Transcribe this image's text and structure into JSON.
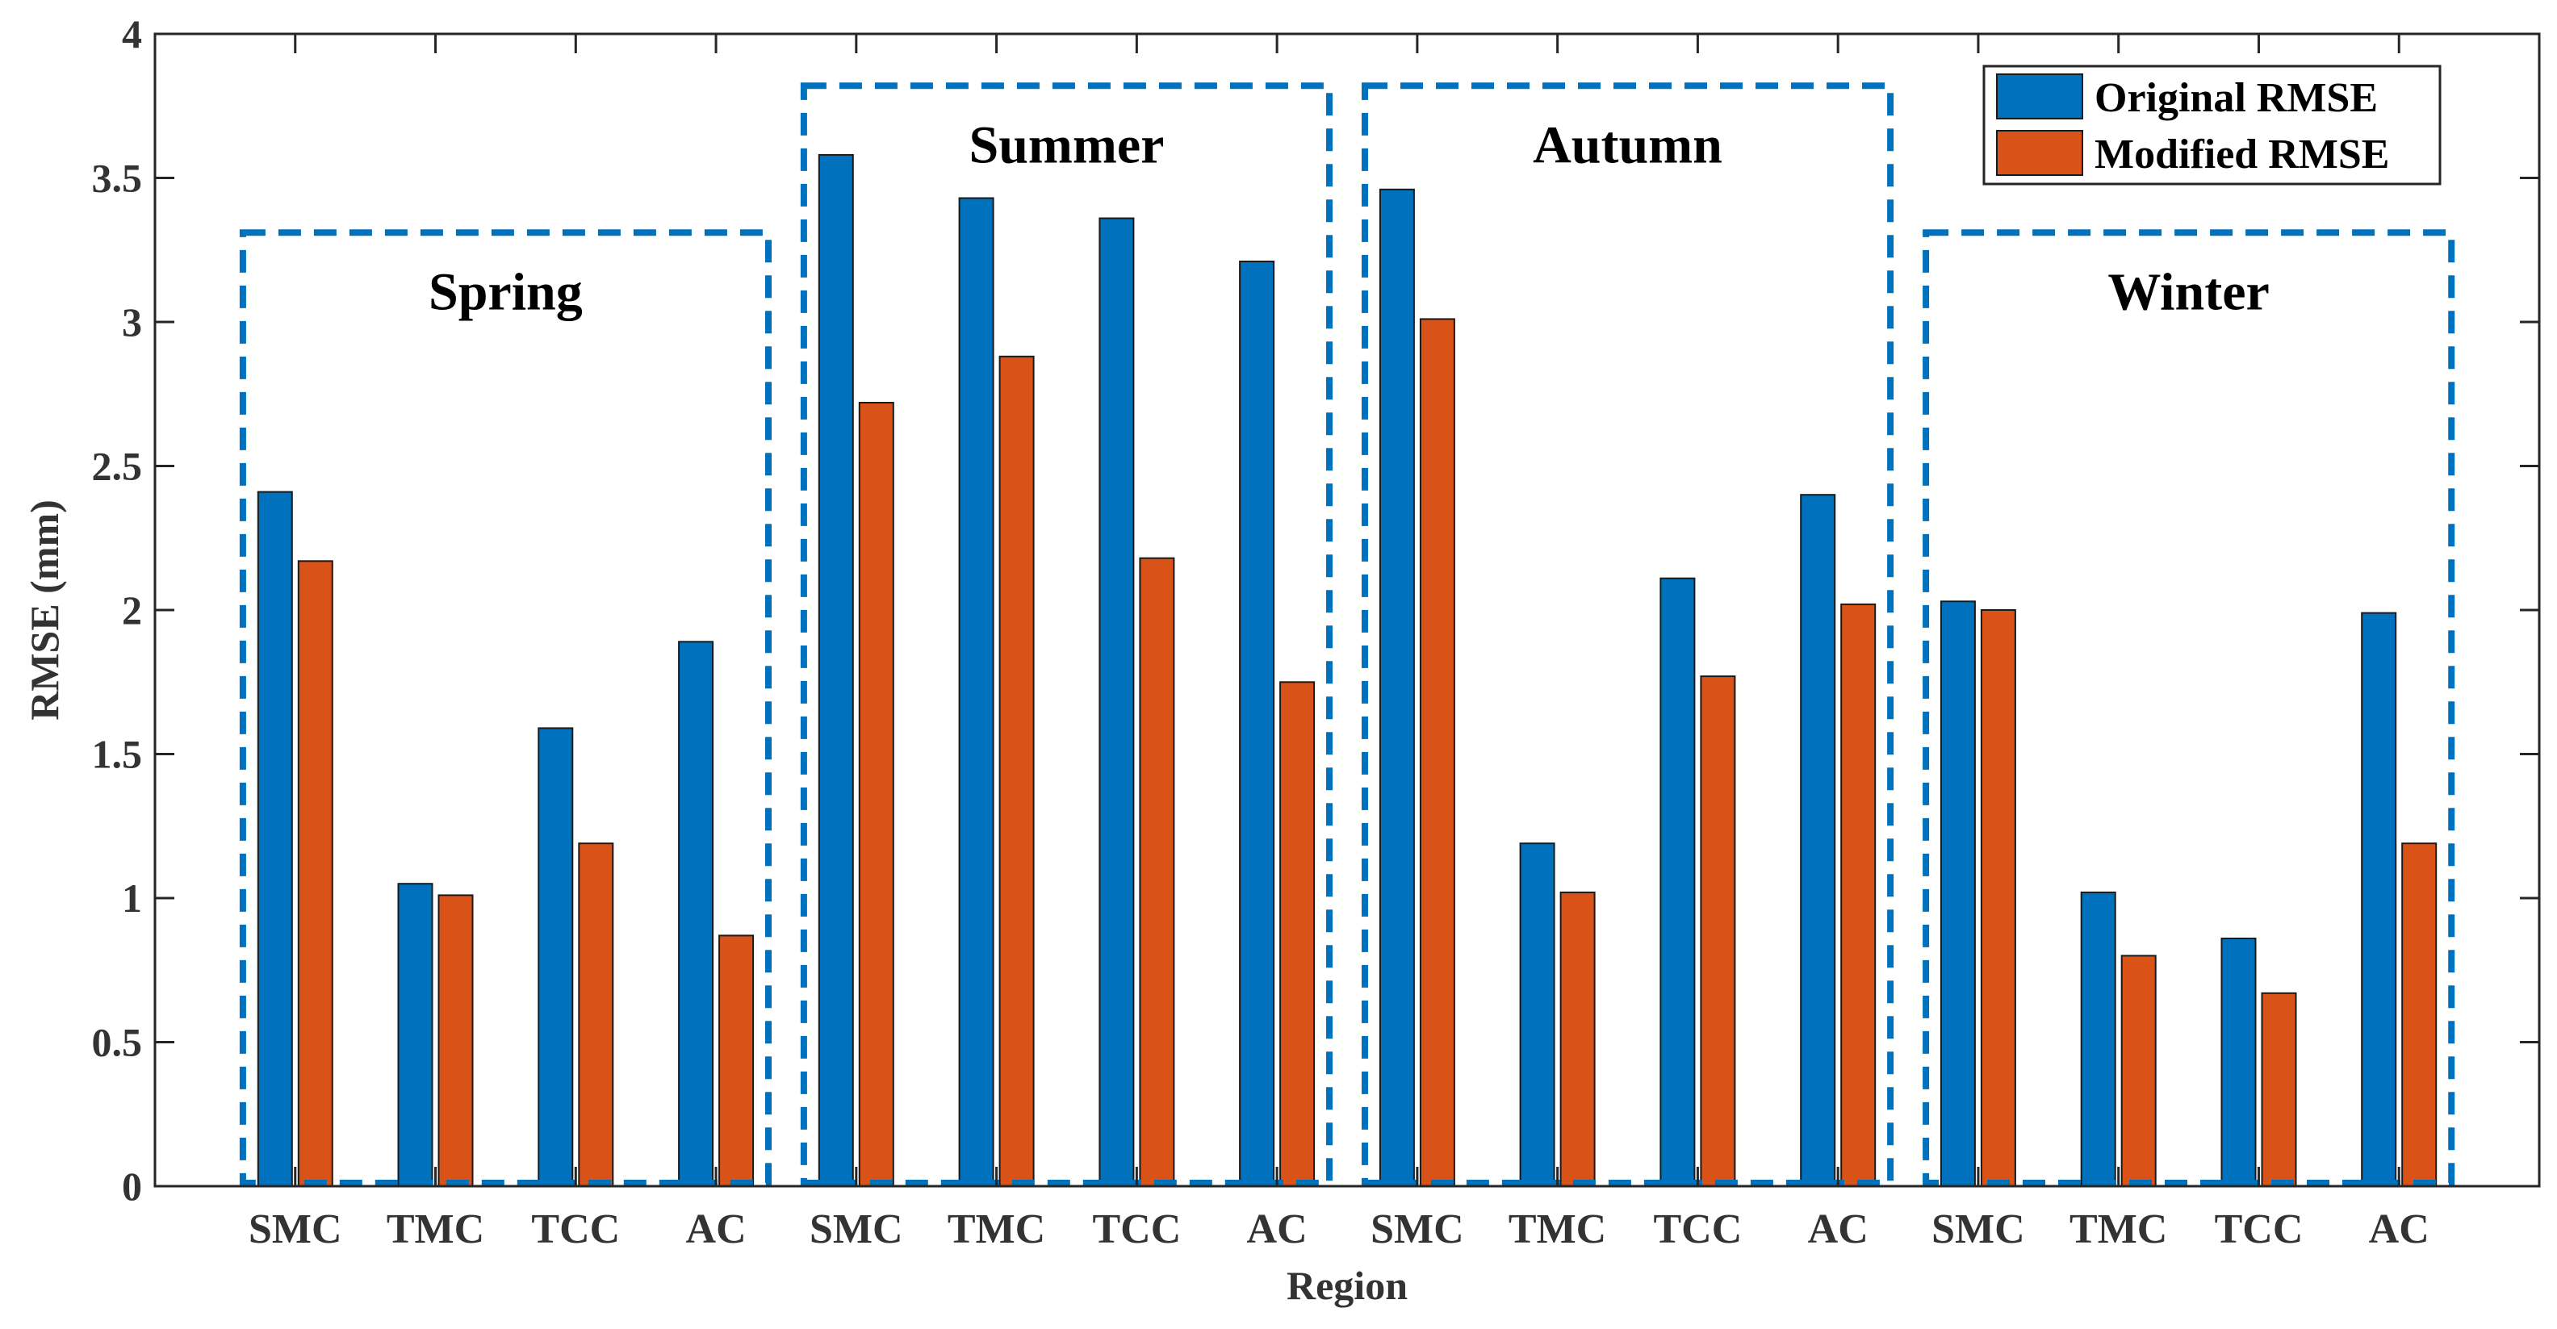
{
  "chart_data": {
    "type": "bar",
    "title": "",
    "xlabel": "Region",
    "ylabel": "RMSE (mm)",
    "ylim": [
      0,
      4
    ],
    "yticks": [
      "0",
      "0.5",
      "1",
      "1.5",
      "2",
      "2.5",
      "3",
      "3.5",
      "4"
    ],
    "categories": [
      "SMC",
      "TMC",
      "TCC",
      "AC",
      "SMC",
      "TMC",
      "TCC",
      "AC",
      "SMC",
      "TMC",
      "TCC",
      "AC",
      "SMC",
      "TMC",
      "TCC",
      "AC"
    ],
    "series": [
      {
        "name": "Original RMSE",
        "color": "#0072BD",
        "values": [
          2.41,
          1.05,
          1.59,
          1.89,
          3.58,
          3.43,
          3.36,
          3.21,
          3.46,
          1.19,
          2.11,
          2.4,
          2.03,
          1.02,
          0.86,
          1.99
        ]
      },
      {
        "name": "Modified RMSE",
        "color": "#D95319",
        "values": [
          2.17,
          1.01,
          1.19,
          0.87,
          2.72,
          2.88,
          2.18,
          1.75,
          3.01,
          1.02,
          1.77,
          2.02,
          2.0,
          0.8,
          0.67,
          1.19
        ]
      }
    ],
    "seasons": [
      {
        "label": "Spring",
        "top": 3.31,
        "color": "#0072BD"
      },
      {
        "label": "Summer",
        "top": 3.82,
        "color": "#0072BD"
      },
      {
        "label": "Autumn",
        "top": 3.82,
        "color": "#0072BD"
      },
      {
        "label": "Winter",
        "top": 3.31,
        "color": "#0072BD"
      }
    ],
    "legend_position": "top-right",
    "grid": false
  }
}
